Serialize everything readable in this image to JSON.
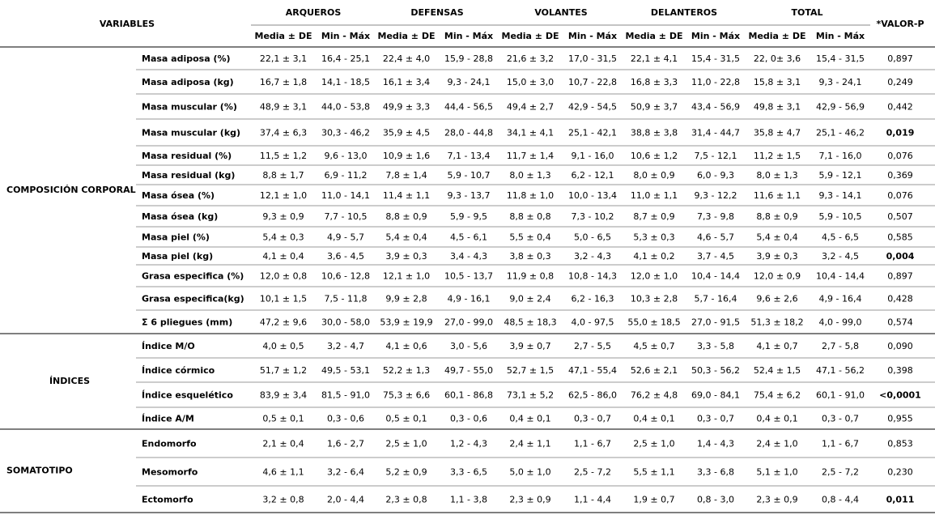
{
  "table": {
    "header": {
      "variables": "VARIABLES",
      "groups": [
        "ARQUEROS",
        "DEFENSAS",
        "VOLANTES",
        "DELANTEROS",
        "TOTAL"
      ],
      "subheaders": [
        "Media ± DE",
        "Min - Máx",
        "Media ± DE",
        "Min - Máx",
        "Media ± DE",
        "Min - Máx",
        "Media ± DE",
        "Min - Máx",
        "Media ± DE",
        "Min - Máx"
      ],
      "pvalue": "*VALOR-P"
    },
    "sections": [
      {
        "name": "COMPOSICIÓN CORPORAL",
        "rows": [
          {
            "label": "Masa adiposa (%)",
            "cells": [
              "22,1 ± 3,1",
              "16,4 - 25,1",
              "22,4 ± 4,0",
              "15,9 - 28,8",
              "21,6 ± 3,2",
              "17,0 - 31,5",
              "22,1 ± 4,1",
              "15,4 - 31,5",
              "22, 0± 3,6",
              "15,4 - 31,5"
            ],
            "p": "0,897"
          },
          {
            "label": "Masa adiposa (kg)",
            "cells": [
              "16,7 ± 1,8",
              "14,1 - 18,5",
              "16,1 ± 3,4",
              "9,3 - 24,1",
              "15,0 ± 3,0",
              "10,7 - 22,8",
              "16,8 ± 3,3",
              "11,0 - 22,8",
              "15,8 ± 3,1",
              "9,3 - 24,1"
            ],
            "p": "0,249"
          },
          {
            "label": "Masa muscular (%)",
            "cells": [
              "48,9 ± 3,1",
              "44,0 - 53,8",
              "49,9 ± 3,3",
              "44,4 - 56,5",
              "49,4 ± 2,7",
              "42,9 - 54,5",
              "50,9 ± 3,7",
              "43,4 - 56,9",
              "49,8 ± 3,1",
              "42,9 - 56,9"
            ],
            "p": "0,442"
          },
          {
            "label": "Masa muscular (kg)",
            "cells": [
              "37,4 ± 6,3",
              "30,3 - 46,2",
              "35,9 ± 4,5",
              "28,0 - 44,8",
              "34,1 ± 4,1",
              "25,1 - 42,1",
              "38,8 ± 3,8",
              "31,4 - 44,7",
              "35,8 ± 4,7",
              "25,1 - 46,2"
            ],
            "p": "0,019",
            "p_bold": true
          },
          {
            "label": "Masa residual (%)",
            "cells": [
              "11,5 ± 1,2",
              "9,6 - 13,0",
              "10,9 ± 1,6",
              "7,1 - 13,4",
              "11,7 ± 1,4",
              "9,1 - 16,0",
              "10,6 ± 1,2",
              "7,5 - 12,1",
              "11,2 ± 1,5",
              "7,1 - 16,0"
            ],
            "p": "0,076"
          },
          {
            "label": "Masa residual (kg)",
            "cells": [
              "8,8 ± 1,7",
              "6,9 - 11,2",
              "7,8 ± 1,4",
              "5,9 - 10,7",
              "8,0 ± 1,3",
              "6,2 - 12,1",
              "8,0 ± 0,9",
              "6,0 - 9,3",
              "8,0 ± 1,3",
              "5,9 - 12,1"
            ],
            "p": "0,369"
          },
          {
            "label": "Masa ósea (%)",
            "cells": [
              "12,1 ± 1,0",
              "11,0 - 14,1",
              "11,4 ± 1,1",
              "9,3 - 13,7",
              "11,8 ± 1,0",
              "10,0 - 13,4",
              "11,0 ± 1,1",
              "9,3 - 12,2",
              "11,6 ± 1,1",
              "9,3 - 14,1"
            ],
            "p": "0,076"
          },
          {
            "label": "Masa ósea (kg)",
            "cells": [
              "9,3 ± 0,9",
              "7,7 - 10,5",
              "8,8 ± 0,9",
              "5,9 - 9,5",
              "8,8 ± 0,8",
              "7,3 - 10,2",
              "8,7 ± 0,9",
              "7,3 - 9,8",
              "8,8 ± 0,9",
              "5,9 - 10,5"
            ],
            "p": "0,507"
          },
          {
            "label": "Masa piel (%)",
            "cells": [
              "5,4 ± 0,3",
              "4,9 - 5,7",
              "5,4 ± 0,4",
              "4,5 - 6,1",
              "5,5 ± 0,4",
              "5,0 - 6,5",
              "5,3 ± 0,3",
              "4,6 - 5,7",
              "5,4 ± 0,4",
              "4,5 - 6,5"
            ],
            "p": "0,585"
          },
          {
            "label": "Masa piel (kg)",
            "cells": [
              "4,1 ± 0,4",
              "3,6 - 4,5",
              "3,9 ± 0,3",
              "3,4 - 4,3",
              "3,8 ± 0,3",
              "3,2 - 4,3",
              "4,1 ± 0,2",
              "3,7 - 4,5",
              "3,9 ± 0,3",
              "3,2 - 4,5"
            ],
            "p": "0,004",
            "p_bold": true
          },
          {
            "label": "Grasa especifica (%)",
            "cells": [
              "12,0 ± 0,8",
              "10,6 - 12,8",
              "12,1 ± 1,0",
              "10,5 - 13,7",
              "11,9 ± 0,8",
              "10,8 - 14,3",
              "12,0 ± 1,0",
              "10,4 - 14,4",
              "12,0 ± 0,9",
              "10,4 - 14,4"
            ],
            "p": "0,897"
          },
          {
            "label": "Grasa especifica(kg)",
            "cells": [
              "10,1 ± 1,5",
              "7,5 - 11,8",
              "9,9 ± 2,8",
              "4,9 - 16,1",
              "9,0 ± 2,4",
              "6,2 - 16,3",
              "10,3 ± 2,8",
              "5,7 - 16,4",
              "9,6 ± 2,6",
              "4,9 - 16,4"
            ],
            "p": "0,428"
          },
          {
            "label": "Σ 6 pliegues (mm)",
            "cells": [
              "47,2 ± 9,6",
              "30,0 - 58,0",
              "53,9 ± 19,9",
              "27,0 - 99,0",
              "48,5 ± 18,3",
              "4,0 - 97,5",
              "55,0 ± 18,5",
              "27,0 - 91,5",
              "51,3 ± 18,2",
              "4,0 - 99,0"
            ],
            "p": "0,574"
          }
        ]
      },
      {
        "name": "ÍNDICES",
        "rows": [
          {
            "label": "Índice M/O",
            "cells": [
              "4,0 ± 0,5",
              "3,2 - 4,7",
              "4,1 ± 0,6",
              "3,0 - 5,6",
              "3,9 ± 0,7",
              "2,7 - 5,5",
              "4,5 ± 0,7",
              "3,3 - 5,8",
              "4,1 ± 0,7",
              "2,7 - 5,8"
            ],
            "p": "0,090"
          },
          {
            "label": "Índice córmico",
            "cells": [
              "51,7 ± 1,2",
              "49,5 - 53,1",
              "52,2 ± 1,3",
              "49,7 - 55,0",
              "52,7 ± 1,5",
              "47,1 - 55,4",
              "52,6 ± 2,1",
              "50,3 - 56,2",
              "52,4 ± 1,5",
              "47,1 - 56,2"
            ],
            "p": "0,398"
          },
          {
            "label": "Índice esquelético",
            "cells": [
              "83,9 ± 3,4",
              "81,5 - 91,0",
              "75,3 ± 6,6",
              "60,1 - 86,8",
              "73,1 ± 5,2",
              "62,5 - 86,0",
              "76,2 ± 4,8",
              "69,0 - 84,1",
              "75,4 ± 6,2",
              "60,1 - 91,0"
            ],
            "p": "<0,0001",
            "p_bold": true
          },
          {
            "label": "Índice A/M",
            "cells": [
              "0,5 ± 0,1",
              "0,3 - 0,6",
              "0,5 ± 0,1",
              "0,3 - 0,6",
              "0,4 ± 0,1",
              "0,3 - 0,7",
              "0,4 ± 0,1",
              "0,3 - 0,7",
              "0,4 ± 0,1",
              "0,3 - 0,7"
            ],
            "p": "0,955"
          }
        ]
      },
      {
        "name": "SOMATOTIPO",
        "rows": [
          {
            "label": "Endomorfo",
            "cells": [
              "2,1 ± 0,4",
              "1,6 - 2,7",
              "2,5 ± 1,0",
              "1,2 - 4,3",
              "2,4 ± 1,1",
              "1,1 - 6,7",
              "2,5 ± 1,0",
              "1,4 - 4,3",
              "2,4 ± 1,0",
              "1,1 - 6,7"
            ],
            "p": "0,853"
          },
          {
            "label": "Mesomorfo",
            "cells": [
              "4,6 ± 1,1",
              "3,2 - 6,4",
              "5,2 ± 0,9",
              "3,3 - 6,5",
              "5,0 ± 1,0",
              "2,5 - 7,2",
              "5,5 ± 1,1",
              "3,3 - 6,8",
              "5,1 ± 1,0",
              "2,5 - 7,2"
            ],
            "p": "0,230"
          },
          {
            "label": "Ectomorfo",
            "cells": [
              "3,2 ± 0,8",
              "2,0 - 4,4",
              "2,3 ± 0,8",
              "1,1 - 3,8",
              "2,3 ± 0,9",
              "1,1 - 4,4",
              "1,9 ± 0,7",
              "0,8 - 3,0",
              "2,3 ± 0,9",
              "0,8 - 4,4"
            ],
            "p": "0,011",
            "p_bold": true
          }
        ]
      }
    ]
  }
}
